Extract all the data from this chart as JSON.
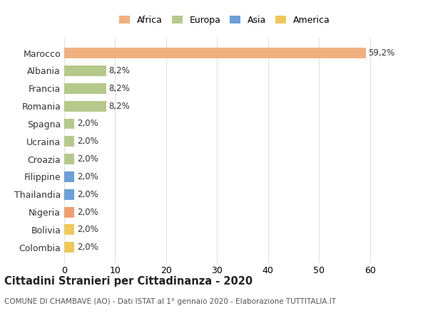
{
  "countries": [
    "Colombia",
    "Bolivia",
    "Nigeria",
    "Thailandia",
    "Filippine",
    "Croazia",
    "Ucraina",
    "Spagna",
    "Romania",
    "Francia",
    "Albania",
    "Marocco"
  ],
  "values": [
    2.0,
    2.0,
    2.0,
    2.0,
    2.0,
    2.0,
    2.0,
    2.0,
    8.2,
    8.2,
    8.2,
    59.2
  ],
  "labels": [
    "2,0%",
    "2,0%",
    "2,0%",
    "2,0%",
    "2,0%",
    "2,0%",
    "2,0%",
    "2,0%",
    "8,2%",
    "8,2%",
    "8,2%",
    "59,2%"
  ],
  "colors": [
    "#f0c85a",
    "#f0c85a",
    "#f0a070",
    "#6a9fd8",
    "#6a9fd8",
    "#b5c98a",
    "#b5c98a",
    "#b5c98a",
    "#b5c98a",
    "#b5c98a",
    "#b5c98a",
    "#f0b080"
  ],
  "continent": [
    "America",
    "America",
    "Africa",
    "Asia",
    "Asia",
    "Europa",
    "Europa",
    "Europa",
    "Europa",
    "Europa",
    "Europa",
    "Africa"
  ],
  "legend_labels": [
    "Africa",
    "Europa",
    "Asia",
    "America"
  ],
  "legend_colors": [
    "#f0b080",
    "#b5c98a",
    "#6a9fd8",
    "#f0c85a"
  ],
  "title": "Cittadini Stranieri per Cittadinanza - 2020",
  "subtitle": "COMUNE DI CHAMBAVE (AO) - Dati ISTAT al 1° gennaio 2020 - Elaborazione TUTTITALIA.IT",
  "xlim": [
    0,
    63
  ],
  "xticks": [
    0,
    10,
    20,
    30,
    40,
    50,
    60
  ],
  "background_color": "#ffffff",
  "grid_color": "#e0e0e0"
}
